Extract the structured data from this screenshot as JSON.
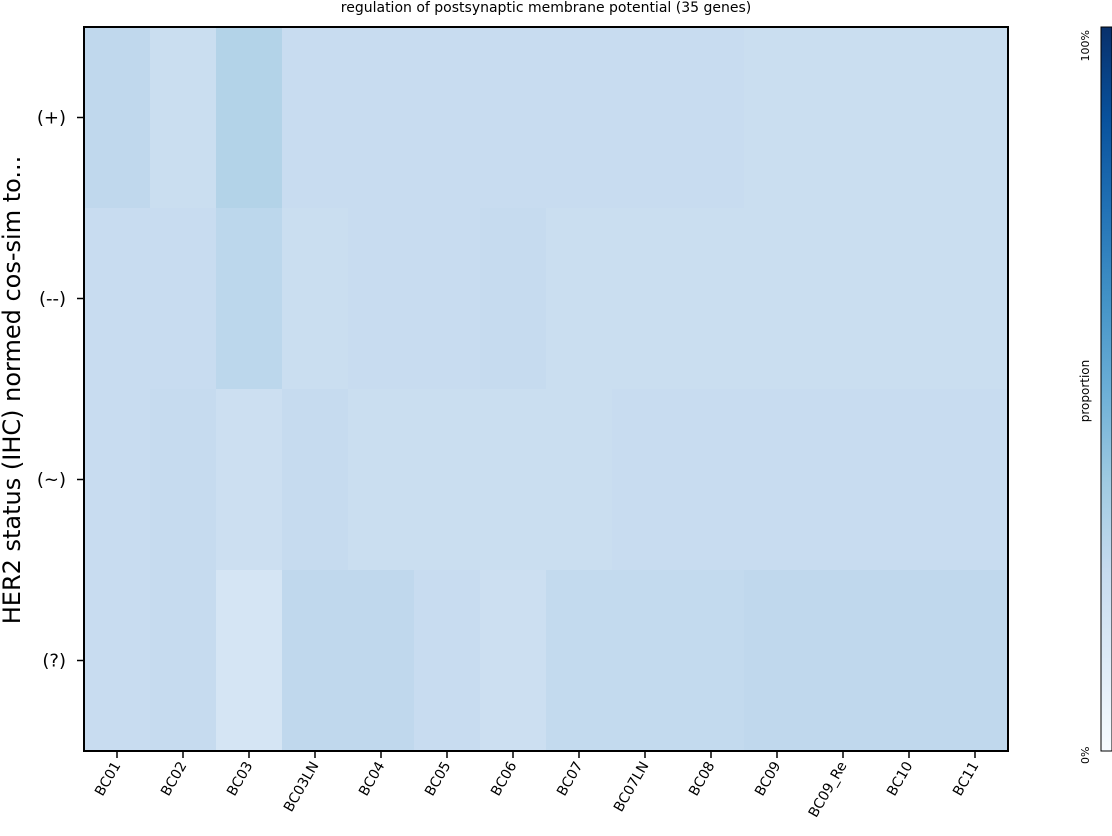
{
  "chart_data": {
    "type": "heatmap",
    "title": "regulation of postsynaptic membrane potential (35 genes)",
    "ylabel": "HER2 status (IHC) normed cos-sim to...",
    "xlabel": "",
    "x_categories": [
      "BC01",
      "BC02",
      "BC03",
      "BC03LN",
      "BC04",
      "BC05",
      "BC06",
      "BC07",
      "BC07LN",
      "BC08",
      "BC09",
      "BC09_Re",
      "BC10",
      "BC11"
    ],
    "y_categories": [
      "(+)",
      "(--)",
      "(~)",
      "(?)"
    ],
    "values": [
      [
        0.27,
        0.23,
        0.31,
        0.24,
        0.24,
        0.24,
        0.24,
        0.24,
        0.24,
        0.24,
        0.23,
        0.23,
        0.23,
        0.23
      ],
      [
        0.24,
        0.24,
        0.28,
        0.23,
        0.24,
        0.24,
        0.25,
        0.23,
        0.23,
        0.23,
        0.23,
        0.23,
        0.23,
        0.23
      ],
      [
        0.24,
        0.25,
        0.22,
        0.25,
        0.23,
        0.23,
        0.23,
        0.23,
        0.24,
        0.24,
        0.24,
        0.24,
        0.24,
        0.24
      ],
      [
        0.24,
        0.25,
        0.17,
        0.27,
        0.27,
        0.24,
        0.22,
        0.26,
        0.26,
        0.26,
        0.27,
        0.27,
        0.27,
        0.27
      ]
    ],
    "colorbar": {
      "label": "proportion",
      "min_label": "0%",
      "max_label": "100%",
      "vmin": 0,
      "vmax": 1
    },
    "colormap": "Blues",
    "grid": false
  }
}
